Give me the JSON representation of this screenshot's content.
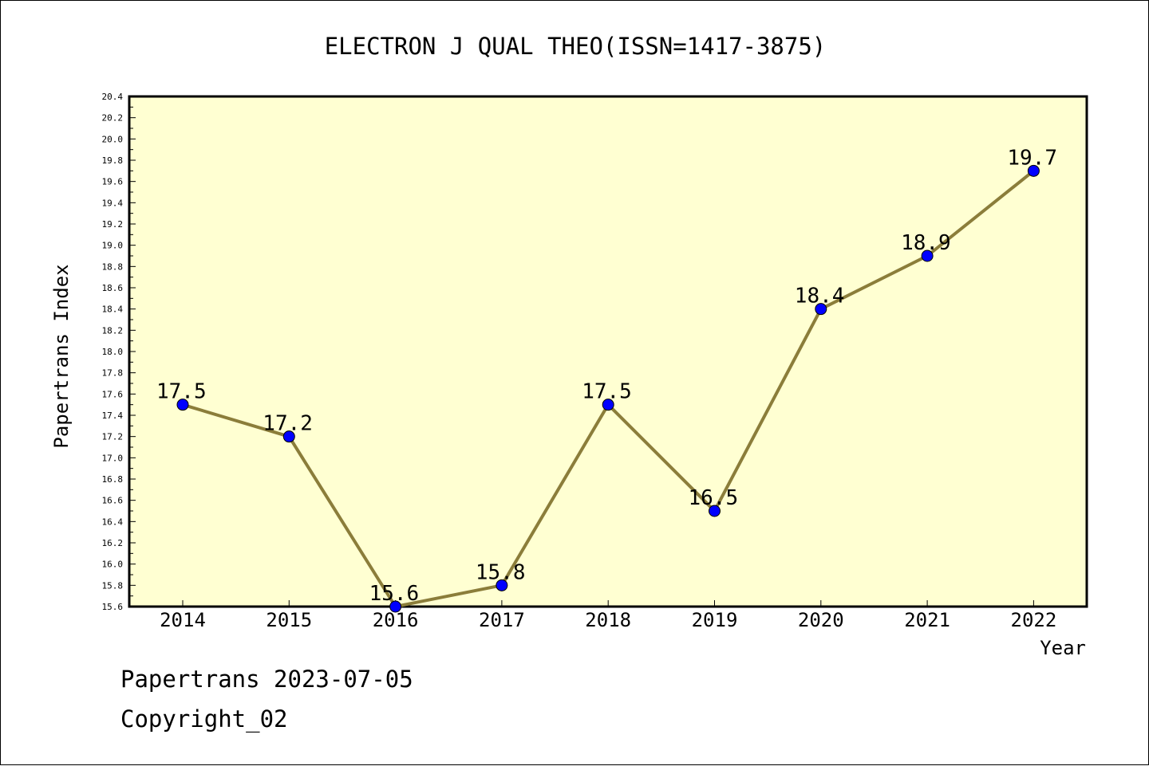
{
  "chart_data": {
    "type": "line",
    "title": "ELECTRON J QUAL THEO(ISSN=1417-3875)",
    "xlabel": "Year",
    "ylabel": "Papertrans Index",
    "categories": [
      "2014",
      "2015",
      "2016",
      "2017",
      "2018",
      "2019",
      "2020",
      "2021",
      "2022"
    ],
    "values": [
      17.5,
      17.2,
      15.6,
      15.8,
      17.5,
      16.5,
      18.4,
      18.9,
      19.7
    ],
    "data_labels": [
      "17.5",
      "17.2",
      "15.6",
      "15.8",
      "17.5",
      "16.5",
      "18.4",
      "18.9",
      "19.7"
    ],
    "ylim": [
      15.6,
      20.4
    ],
    "yticks": [
      "15.6",
      "15.8",
      "16.0",
      "16.2",
      "16.4",
      "16.6",
      "16.8",
      "17.0",
      "17.2",
      "17.4",
      "17.6",
      "17.8",
      "18.0",
      "18.2",
      "18.4",
      "18.6",
      "18.8",
      "19.0",
      "19.2",
      "19.4",
      "19.6",
      "19.8",
      "20.0",
      "20.2",
      "20.4"
    ],
    "grid": false,
    "colors": {
      "plot_background": "#ffffd2",
      "line": "#8b7d3a",
      "marker": "#0000ff"
    }
  },
  "footer": {
    "line1": "Papertrans 2023-07-05",
    "line2": "Copyright_02"
  }
}
